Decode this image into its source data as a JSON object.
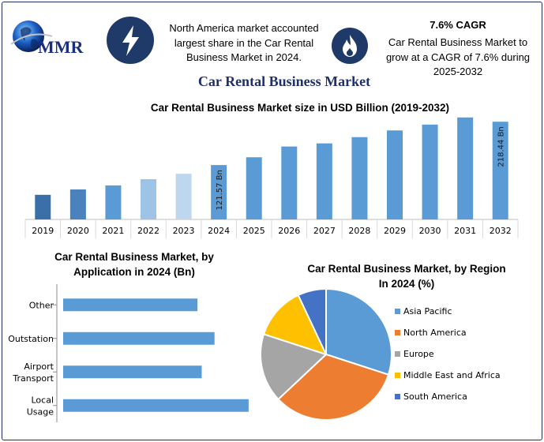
{
  "header": {
    "logo_text": "MMR",
    "info1": {
      "icon": "lightning-icon",
      "line1": "North America market accounted",
      "line2": "largest share in the Car Rental",
      "line3": "Business Market in 2024."
    },
    "info2": {
      "icon": "flame-icon",
      "title": "7.6% CAGR",
      "line1": "Car Rental Business Market to",
      "line2": "grow at a CAGR of 7.6% during",
      "line3": "2025-2032"
    }
  },
  "main_title": "Car Rental Business Market",
  "colors": {
    "navy": "#1f3a68",
    "bar_blue": "#5b9bd5",
    "orange": "#ed7d31",
    "gray": "#a5a5a5",
    "yellow": "#ffc000"
  },
  "chart_data": [
    {
      "type": "bar",
      "title": "Car Rental Business Market size in USD Billion (2019-2032)",
      "categories": [
        "2019",
        "2020",
        "2021",
        "2022",
        "2023",
        "2024",
        "2025",
        "2026",
        "2027",
        "2028",
        "2029",
        "2030",
        "2031",
        "2032"
      ],
      "values": [
        55,
        67,
        76,
        90,
        102,
        121.57,
        139,
        163,
        170,
        184,
        199,
        212,
        228,
        218.44
      ],
      "data_labels": {
        "2024": "121.57 Bn",
        "2032": "218.44 Bn"
      },
      "bar_colors": [
        "#3a6fa8",
        "#4a82bd",
        "#5b9bd5",
        "#9dc3e6",
        "#bdd7ee",
        "#5b9bd5",
        "#5b9bd5",
        "#5b9bd5",
        "#5b9bd5",
        "#5b9bd5",
        "#5b9bd5",
        "#5b9bd5",
        "#5b9bd5",
        "#5b9bd5"
      ],
      "ylim": [
        0,
        240
      ],
      "grid": false
    },
    {
      "type": "bar",
      "orientation": "horizontal",
      "title_line1": "Car Rental Business Market, by",
      "title_line2": "Application in 2024 (Bn)",
      "categories": [
        {
          "lines": [
            "Other"
          ],
          "value": 63
        },
        {
          "lines": [
            "Outstation"
          ],
          "value": 71
        },
        {
          "lines": [
            "Airport",
            "Transport"
          ],
          "value": 65
        },
        {
          "lines": [
            "Local",
            "Usage"
          ],
          "value": 87
        }
      ],
      "xlim": [
        0,
        100
      ],
      "grid": false
    },
    {
      "type": "pie",
      "title_line1": "Car Rental Business Market, by Region",
      "title_line2": "In 2024 (%)",
      "slices": [
        {
          "label": "Asia Pacific",
          "value": 30,
          "color": "#5b9bd5"
        },
        {
          "label": "North America",
          "value": 33,
          "color": "#ed7d31"
        },
        {
          "label": "Europe",
          "value": 17,
          "color": "#a5a5a5"
        },
        {
          "label": "Middle East and Africa",
          "value": 13,
          "color": "#ffc000"
        },
        {
          "label": "South America",
          "value": 7,
          "color": "#4472c4"
        }
      ],
      "legend": "right"
    }
  ]
}
